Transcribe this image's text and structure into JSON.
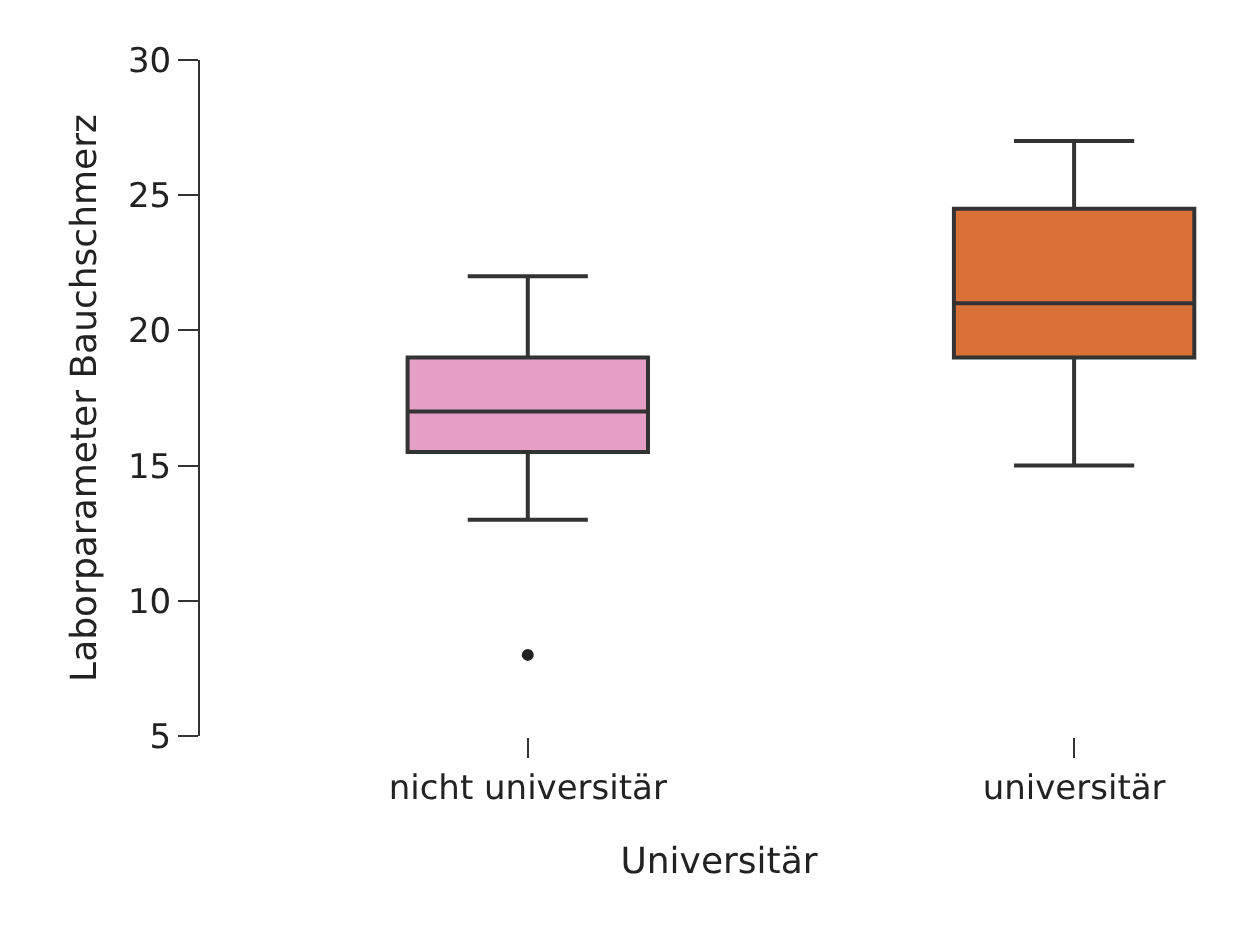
{
  "chart_data": {
    "type": "box",
    "xlabel": "Universitär",
    "ylabel": "Laborparameter Bauchschmerz",
    "categories": [
      "nicht universitär",
      "universitär"
    ],
    "boxes": [
      {
        "low": 13,
        "q1": 15.5,
        "median": 17,
        "q3": 19,
        "high": 22,
        "outliers": [
          8
        ]
      },
      {
        "low": 15,
        "q1": 19,
        "median": 21,
        "q3": 24.5,
        "high": 27
      }
    ],
    "colors": [
      "#e6a0c8",
      "#d97035"
    ],
    "ylim": [
      5,
      30
    ],
    "yticks": [
      5,
      10,
      15,
      20,
      25,
      30
    ]
  }
}
